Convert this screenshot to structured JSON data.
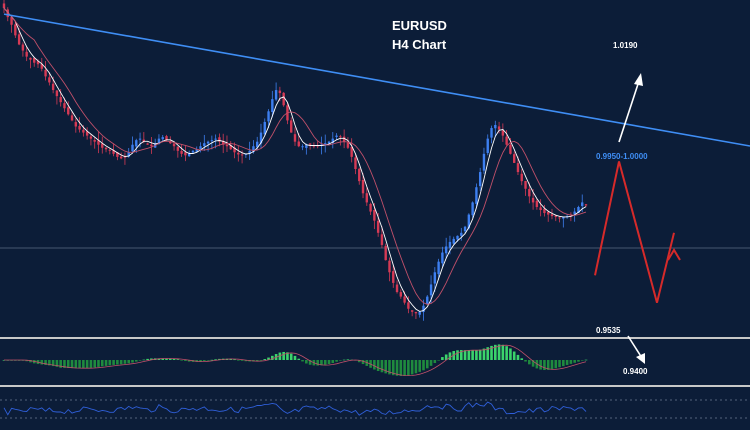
{
  "header": {
    "symbol": "EURUSD",
    "timeframe": "H4 Chart"
  },
  "colors": {
    "background": "#0c1d38",
    "bull_candle": "#3d7ff0",
    "bear_candle": "#d63a55",
    "trendline": "#3f8ef5",
    "ma_fast": "#ffffff",
    "ma_slow": "#c0506a",
    "macd_up": "#3bd46b",
    "macd_down": "#1f8a3e",
    "rsi": "#2f5fd9",
    "panel_border": "#c8c8c8",
    "target_arrow": "#ffffff",
    "projection": "#d62a2a"
  },
  "chart_data": {
    "type": "candlestick",
    "title": "EURUSD H4 Chart",
    "ylim": [
      0.938,
      1.045
    ],
    "levels": [
      {
        "label": "1.0190",
        "price": 1.019
      },
      {
        "label": "0.9950-1.0000",
        "price": 0.9975
      },
      {
        "label": "0.9535",
        "price": 0.9535
      },
      {
        "label": "0.9400",
        "price": 0.94
      }
    ],
    "closes": [
      1.044,
      1.041,
      1.0385,
      1.035,
      1.032,
      1.03,
      1.028,
      1.027,
      1.026,
      1.0255,
      1.024,
      1.0215,
      1.0195,
      1.017,
      1.015,
      1.013,
      1.011,
      1.009,
      1.007,
      1.005,
      1.004,
      1.003,
      1.002,
      1.001,
      1.0,
      0.999,
      0.998,
      0.9975,
      0.997,
      0.996,
      0.995,
      0.9945,
      0.995,
      0.9965,
      0.999,
      1.0005,
      1.001,
      1.0,
      0.999,
      0.9985,
      0.9995,
      1.001,
      1.0015,
      1.0005,
      0.9995,
      0.9985,
      0.997,
      0.996,
      0.9955,
      0.996,
      0.997,
      0.9975,
      0.9985,
      0.9995,
      1.0,
      1.0005,
      1.001,
      1.0,
      0.999,
      0.9985,
      0.9975,
      0.9965,
      0.9958,
      0.9955,
      0.996,
      0.997,
      0.9985,
      1.0,
      1.003,
      1.0065,
      1.01,
      1.014,
      1.017,
      1.016,
      1.012,
      1.007,
      1.003,
      1.0,
      0.9985,
      0.9985,
      0.999,
      0.999,
      0.9985,
      0.9985,
      0.999,
      0.9995,
      1.0,
      1.001,
      1.002,
      1.0015,
      1.0,
      0.998,
      0.995,
      0.991,
      0.987,
      0.983,
      0.98,
      0.977,
      0.974,
      0.97,
      0.966,
      0.961,
      0.957,
      0.9535,
      0.9505,
      0.949,
      0.947,
      0.945,
      0.944,
      0.9435,
      0.944,
      0.946,
      0.949,
      0.953,
      0.957,
      0.9605,
      0.9635,
      0.9655,
      0.967,
      0.968,
      0.969,
      0.97,
      0.972,
      0.976,
      0.98,
      0.985,
      0.99,
      0.996,
      1.001,
      1.0045,
      1.0055,
      1.004,
      1.002,
      0.999,
      0.996,
      0.993,
      0.99,
      0.987,
      0.9845,
      0.982,
      0.98,
      0.9785,
      0.9775,
      0.9765,
      0.976,
      0.9755,
      0.9752,
      0.975,
      0.9752,
      0.9755,
      0.976,
      0.977,
      0.9785,
      0.98,
      0.979
    ],
    "trendline": {
      "from": {
        "index": 0,
        "price": 1.042
      },
      "to": {
        "index": 250,
        "price": 0.987
      }
    },
    "projection": [
      0.956,
      0.9935,
      0.947,
      0.97
    ],
    "indicators": [
      "macd",
      "rsi"
    ]
  }
}
